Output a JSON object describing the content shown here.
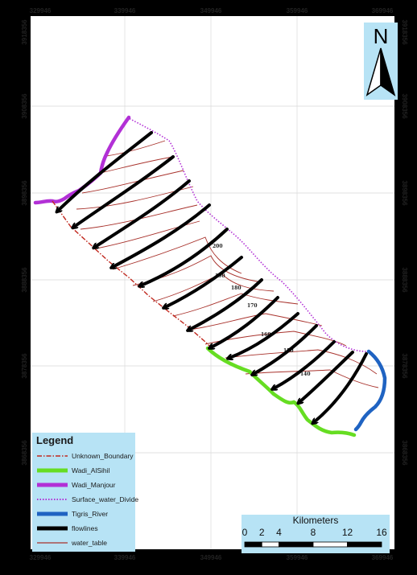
{
  "map": {
    "ticks_top": [
      "329946",
      "339946",
      "349946",
      "359946",
      "369946"
    ],
    "ticks_bottom": [
      "329946",
      "339946",
      "349946",
      "359946",
      "369946"
    ],
    "ticks_left": [
      "3918356",
      "3908356",
      "3898356",
      "3888356",
      "3878356",
      "3868356"
    ],
    "ticks_right": [
      "3918356",
      "3908356",
      "3898356",
      "3888356",
      "3878356",
      "3868356"
    ],
    "contour_labels": [
      "200",
      "190",
      "180",
      "170",
      "160",
      "150",
      "140"
    ],
    "north_label": "N"
  },
  "legend": {
    "title": "Legend",
    "items": [
      {
        "label": "Unknown_Boundary",
        "color": "#c0281e",
        "style": "dash-dot"
      },
      {
        "label": "Wadi_AlSihil",
        "color": "#66dd22",
        "style": "thick"
      },
      {
        "label": "Wadi_Manjour",
        "color": "#b230d6",
        "style": "thick"
      },
      {
        "label": "Surface_water_Divide",
        "color": "#b230d6",
        "style": "dotted"
      },
      {
        "label": "Tigris_River",
        "color": "#1f63c2",
        "style": "thick"
      },
      {
        "label": "flowlines",
        "color": "#000000",
        "style": "thick"
      },
      {
        "label": "water_table",
        "color": "#a8322c",
        "style": "thin"
      }
    ]
  },
  "scale": {
    "title": "Kilometers",
    "labels": [
      "0",
      "2",
      "4",
      "8",
      "12",
      "16"
    ],
    "values": [
      0,
      2,
      4,
      8,
      12,
      16
    ]
  }
}
